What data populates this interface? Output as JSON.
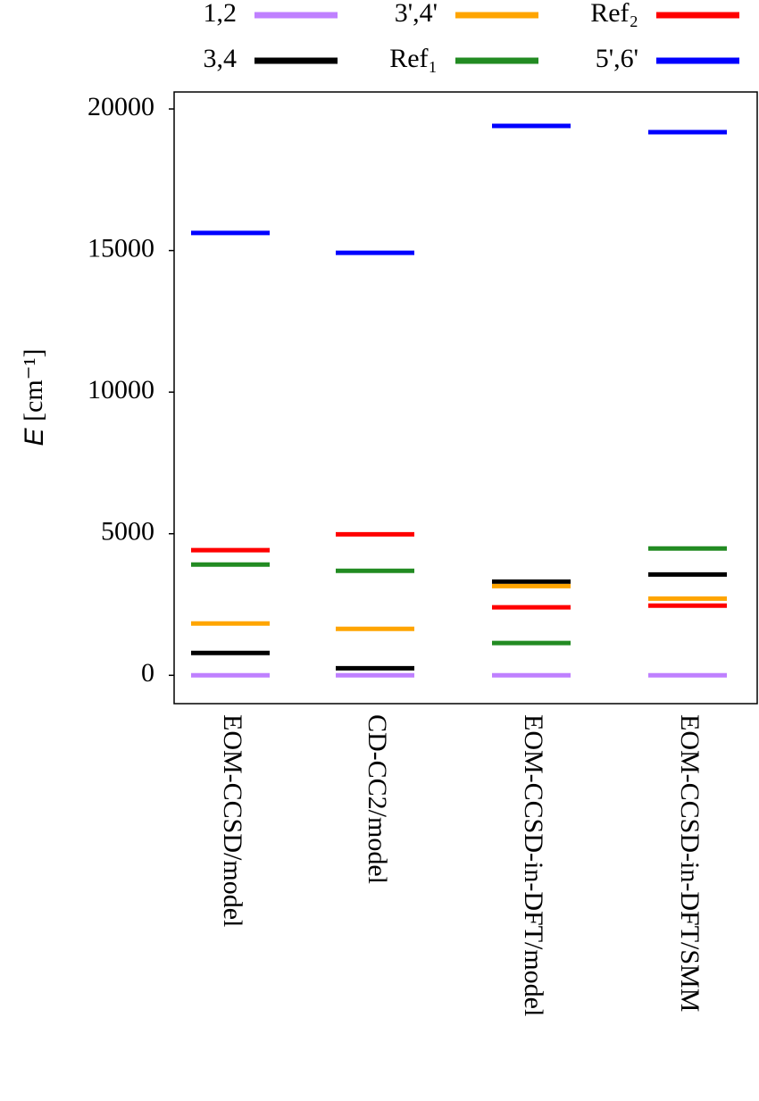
{
  "chart_data": {
    "type": "levels",
    "y_label_symbol": "E",
    "y_label_unit": "[cm⁻¹]",
    "categories": [
      "EOM-CCSD/model",
      "CD-CC2/model",
      "EOM-CCSD-in-DFT/model",
      "EOM-CCSD-in-DFT/SMM"
    ],
    "series": [
      {
        "name": "1,2",
        "color": "#bf80ff",
        "values": [
          0,
          0,
          0,
          0
        ]
      },
      {
        "name": "3,4",
        "color": "#000000",
        "values": [
          790,
          250,
          3310,
          3560
        ]
      },
      {
        "name": "3',4'",
        "color": "#ffa500",
        "values": [
          1830,
          1640,
          3150,
          2710
        ]
      },
      {
        "name": "Ref₁",
        "color": "#228b22",
        "values": [
          3910,
          3690,
          1140,
          4480
        ]
      },
      {
        "name": "Ref₂",
        "color": "#ff0000",
        "values": [
          4420,
          4980,
          2400,
          2460
        ]
      },
      {
        "name": "5',6'",
        "color": "#0000ff",
        "values": [
          15620,
          14920,
          19400,
          19180
        ]
      }
    ],
    "ylim": [
      -1000,
      20600
    ],
    "yticks": [
      0,
      5000,
      10000,
      15000,
      20000
    ],
    "legend": "top"
  }
}
